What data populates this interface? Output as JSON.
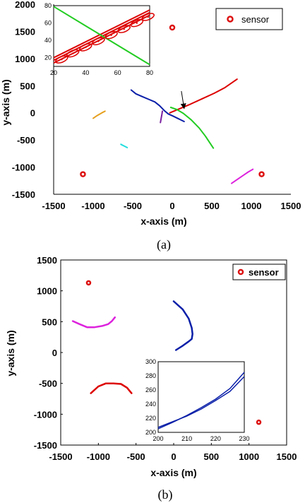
{
  "chart_data": [
    {
      "type": "line",
      "panel_label": "(a)",
      "xlabel": "x-axis (m)",
      "ylabel": "y-axis (m)",
      "xlim": [
        -1500,
        1500
      ],
      "ylim": [
        -1500,
        2000
      ],
      "xticks": [
        "-1500",
        "-1000",
        "-500",
        "0",
        "500",
        "1000",
        "1500"
      ],
      "xtick_values": [
        -1500,
        -1000,
        -500,
        0,
        500,
        1000,
        1500
      ],
      "yticks": [
        "-1500",
        "-1000",
        "-500",
        "0",
        "500",
        "1000",
        "1500",
        "2000"
      ],
      "ytick_values": [
        -1500,
        -1000,
        -500,
        0,
        500,
        1000,
        1500,
        2000
      ],
      "grid": false,
      "box": false,
      "legend": {
        "position": "top-right",
        "entries": [
          "sensor"
        ]
      },
      "sensors": {
        "color": "#dd1111",
        "x": [
          -1130,
          0,
          1130
        ],
        "y": [
          -1130,
          1570,
          -1130
        ]
      },
      "series": [
        {
          "color": "#dd0000",
          "x": [
            -30,
            100,
            230,
            380,
            530,
            660,
            820
          ],
          "y": [
            0,
            80,
            160,
            260,
            360,
            460,
            620
          ]
        },
        {
          "color": "#22cc22",
          "x": [
            -20,
            60,
            140,
            240,
            340,
            420,
            520
          ],
          "y": [
            100,
            60,
            -10,
            -130,
            -280,
            -430,
            -650
          ]
        },
        {
          "color": "#0a1fa8",
          "x": [
            -520,
            -460,
            -380,
            -300,
            -220,
            -160,
            -100,
            -50,
            10,
            80,
            150
          ],
          "y": [
            420,
            350,
            300,
            250,
            200,
            130,
            40,
            -20,
            -60,
            -110,
            -160
          ]
        },
        {
          "color": "#e6a020",
          "x": [
            -1000,
            -950,
            -890,
            -850
          ],
          "y": [
            -100,
            -50,
            0,
            30
          ]
        },
        {
          "color": "#7a1fa0",
          "x": [
            -150,
            -140,
            -130,
            -125
          ],
          "y": [
            -180,
            -100,
            -20,
            30
          ]
        },
        {
          "color": "#22dddd",
          "x": [
            -650,
            -610,
            -570
          ],
          "y": [
            -580,
            -610,
            -640
          ]
        },
        {
          "color": "#dd22dd",
          "x": [
            750,
            820,
            900,
            960,
            1020
          ],
          "y": [
            -1300,
            -1230,
            -1150,
            -1090,
            -1040
          ]
        }
      ],
      "annotation_arrow": {
        "from": [
          115,
          400
        ],
        "to": [
          150,
          80
        ]
      },
      "inset": {
        "xlim": [
          20,
          80
        ],
        "ylim": [
          10,
          80
        ],
        "xticks": [
          "20",
          "40",
          "60",
          "80"
        ],
        "xtick_values": [
          20,
          40,
          60,
          80
        ],
        "yticks": [
          "20",
          "40",
          "60",
          "80"
        ],
        "ytick_values": [
          20,
          40,
          60,
          80
        ],
        "series": [
          {
            "color": "#dd0000",
            "x": [
              20,
              80
            ],
            "y": [
              20,
              75
            ]
          },
          {
            "color": "#dd0000",
            "x": [
              20,
              80
            ],
            "y": [
              14,
              69
            ]
          },
          {
            "color": "#dd0000",
            "x": [
              20,
              80
            ],
            "y": [
              17,
              72
            ]
          },
          {
            "color": "#22cc22",
            "x": [
              20,
              80
            ],
            "y": [
              79,
              12
            ]
          }
        ],
        "ellipse_centers_x": [
          25,
          32,
          40,
          48,
          56,
          64,
          72,
          79
        ],
        "ellipse_centers_y": [
          18,
          25,
          32,
          39,
          46,
          53,
          60,
          67
        ]
      }
    },
    {
      "type": "line",
      "panel_label": "(b)",
      "xlabel": "x-axis (m)",
      "ylabel": "y-axis (m)",
      "xlim": [
        -1500,
        1500
      ],
      "ylim": [
        -1500,
        1500
      ],
      "xticks": [
        "-1500",
        "-1000",
        "-500",
        "0",
        "500",
        "1000",
        "1500"
      ],
      "xtick_values": [
        -1500,
        -1000,
        -500,
        0,
        500,
        1000,
        1500
      ],
      "yticks": [
        "-1500",
        "-1000",
        "-500",
        "0",
        "500",
        "1000",
        "1500"
      ],
      "ytick_values": [
        -1500,
        -1000,
        -500,
        0,
        500,
        1000,
        1500
      ],
      "grid": false,
      "box": true,
      "legend": {
        "position": "top-right",
        "entries": [
          "sensor"
        ]
      },
      "sensors": {
        "color": "#dd1111",
        "x": [
          -1130,
          1130
        ],
        "y": [
          1130,
          -1130
        ]
      },
      "series": [
        {
          "color": "#dd22dd",
          "x": [
            -1340,
            -1250,
            -1150,
            -1050,
            -950,
            -870,
            -820,
            -780
          ],
          "y": [
            510,
            460,
            410,
            410,
            430,
            460,
            510,
            570
          ]
        },
        {
          "color": "#dd0000",
          "x": [
            -1100,
            -1000,
            -900,
            -800,
            -700,
            -620,
            -560
          ],
          "y": [
            -660,
            -550,
            -500,
            -500,
            -510,
            -570,
            -660
          ]
        },
        {
          "color": "#0a1fa8",
          "x": [
            0,
            120,
            200,
            240,
            250,
            240,
            200,
            120,
            30
          ],
          "y": [
            830,
            700,
            550,
            400,
            300,
            220,
            180,
            110,
            40
          ]
        }
      ],
      "annotation_arrow": {
        "from": [
          120,
          -430
        ],
        "to": [
          230,
          -190
        ]
      },
      "inset": {
        "xlim": [
          200,
          230
        ],
        "ylim": [
          200,
          300
        ],
        "xticks": [
          "200",
          "210",
          "220",
          "230"
        ],
        "xtick_values": [
          200,
          210,
          220,
          230
        ],
        "yticks": [
          "200",
          "220",
          "240",
          "260",
          "280",
          "300"
        ],
        "ytick_values": [
          200,
          220,
          240,
          260,
          280,
          300
        ],
        "series": [
          {
            "color": "#0a1fa8",
            "x": [
              200,
              205,
              210,
              215,
              220,
              225,
              230
            ],
            "y": [
              205,
              214,
              224,
              235,
              247,
              262,
              285
            ]
          },
          {
            "color": "#0a1fa8",
            "x": [
              200,
              205,
              210,
              215,
              220,
              225,
              230
            ],
            "y": [
              207,
              215,
              223,
              233,
              245,
              258,
              279
            ]
          }
        ]
      }
    }
  ]
}
